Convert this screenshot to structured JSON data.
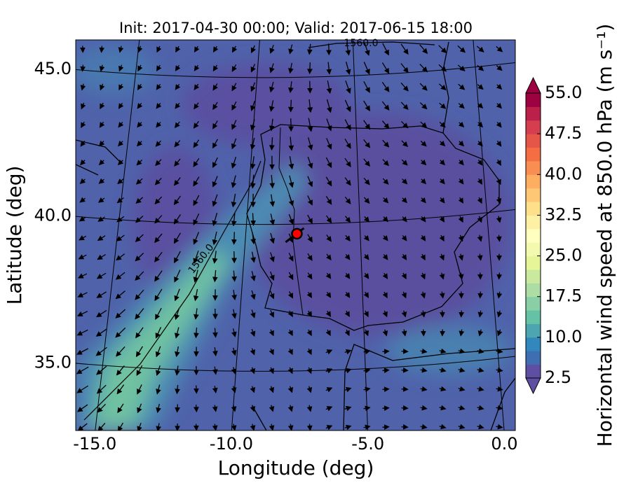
{
  "chart_data": {
    "type": "map",
    "title": "Init: 2017-04-30 00:00; Valid: 2017-06-15 18:00",
    "x_label": "Longitude (deg)",
    "y_label": "Latitude (deg)",
    "xlim": [
      -15.7,
      0.4
    ],
    "ylim": [
      32.7,
      46.0
    ],
    "xticks": [
      {
        "value": -15,
        "label": "-15.0"
      },
      {
        "value": -10,
        "label": "-10.0"
      },
      {
        "value": -5,
        "label": "-5.0"
      },
      {
        "value": 0,
        "label": "0.0"
      }
    ],
    "yticks": [
      {
        "value": 35,
        "label": "35.0"
      },
      {
        "value": 40,
        "label": "40.0"
      },
      {
        "value": 45,
        "label": "45.0"
      }
    ],
    "contour_labels": [
      "1560.0",
      "1560.0"
    ],
    "marker": {
      "lon": -7.6,
      "lat": 39.4,
      "color": "#ff0000"
    },
    "colorbar": {
      "label": "Horizontal wind speed at 850.0 hPa (m s⁻¹)",
      "lim": [
        2.5,
        55.0
      ],
      "ticks": [
        {
          "value": 2.5,
          "label": "2.5"
        },
        {
          "value": 10,
          "label": "10.0"
        },
        {
          "value": 17.5,
          "label": "17.5"
        },
        {
          "value": 25,
          "label": "25.0"
        },
        {
          "value": 32.5,
          "label": "32.5"
        },
        {
          "value": 40,
          "label": "40.0"
        },
        {
          "value": 47.5,
          "label": "47.5"
        },
        {
          "value": 55,
          "label": "55.0"
        }
      ],
      "colors": [
        "#5e4fa2",
        "#3f6fb2",
        "#3288bd",
        "#4ca5b1",
        "#66c2a5",
        "#88cfa5",
        "#abdda4",
        "#c8e99e",
        "#e6f598",
        "#f3fab0",
        "#ffffbf",
        "#fef0a5",
        "#fee08b",
        "#fdc776",
        "#fdae61",
        "#f98e52",
        "#f46d43",
        "#e55649",
        "#d53e4f",
        "#ba2049",
        "#9e0142"
      ]
    }
  }
}
